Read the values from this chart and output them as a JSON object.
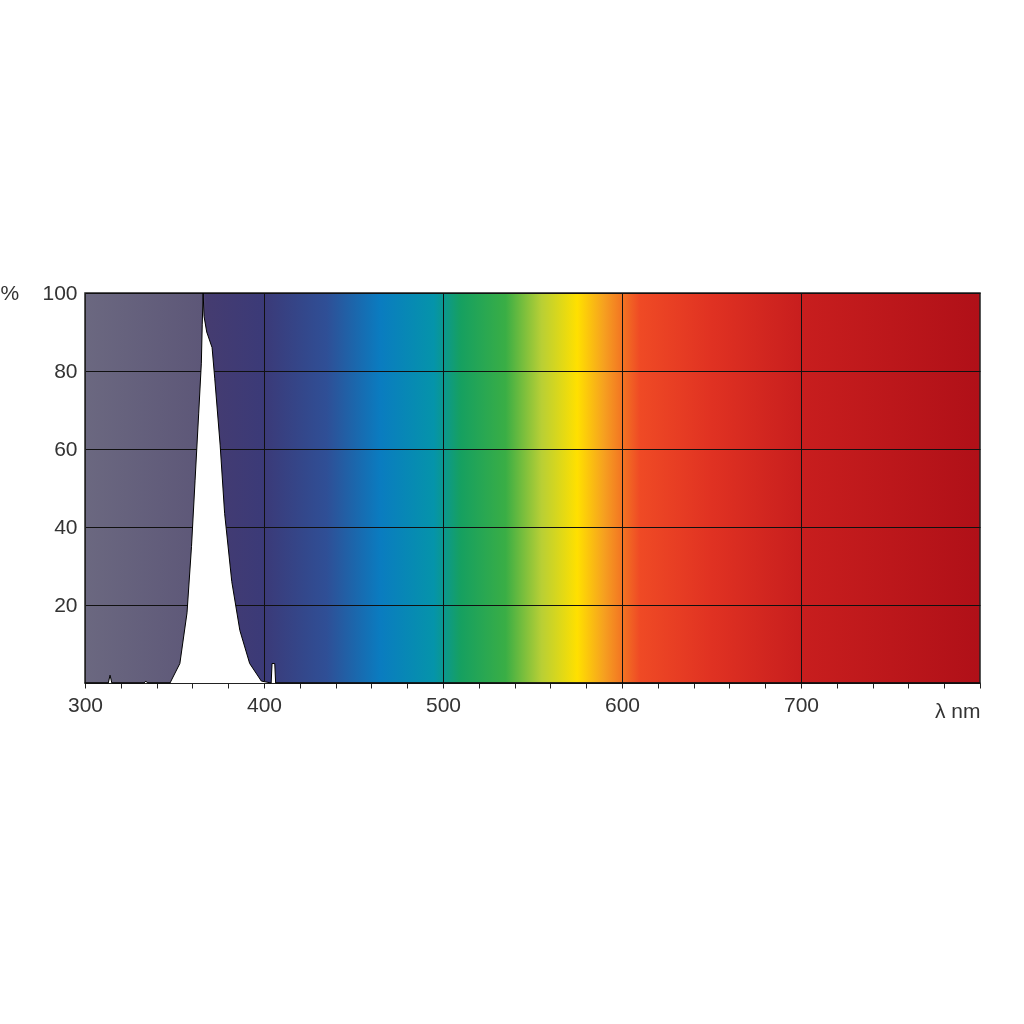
{
  "chart_data": {
    "type": "area",
    "xlabel": "λ nm",
    "ylabel": "%",
    "color": "#ffffff",
    "x": [
      300,
      313,
      314,
      315,
      333,
      334,
      335,
      347.5,
      353,
      357,
      359.5,
      361.5,
      363.5,
      365,
      365.5,
      366,
      366.5,
      368,
      371,
      372.5,
      375.5,
      378,
      382,
      386.5,
      392,
      398.5,
      404,
      404.5,
      406,
      406.5,
      800
    ],
    "values": [
      0,
      0,
      2,
      0,
      0,
      0.5,
      0,
      0,
      5,
      18,
      35,
      52,
      69,
      82,
      92,
      100,
      94,
      90,
      86,
      78,
      61,
      43.5,
      26,
      13.5,
      5,
      0.5,
      0,
      5,
      5,
      0,
      0
    ],
    "xlim": [
      300,
      800
    ],
    "ylim": [
      0,
      100
    ],
    "xticks": [
      300,
      {
        "value": 320,
        "label": null
      },
      {
        "value": 340,
        "label": null
      },
      {
        "value": 360,
        "label": null
      },
      {
        "value": 380,
        "label": null
      },
      400,
      {
        "value": 420,
        "label": null
      },
      {
        "value": 440,
        "label": null
      },
      {
        "value": 460,
        "label": null
      },
      {
        "value": 480,
        "label": null
      },
      500,
      {
        "value": 520,
        "label": null
      },
      {
        "value": 540,
        "label": null
      },
      {
        "value": 560,
        "label": null
      },
      {
        "value": 580,
        "label": null
      },
      600,
      {
        "value": 620,
        "label": null
      },
      {
        "value": 640,
        "label": null
      },
      {
        "value": 660,
        "label": null
      },
      {
        "value": 680,
        "label": null
      },
      700,
      {
        "value": 720,
        "label": null
      },
      {
        "value": 740,
        "label": null
      },
      {
        "value": 760,
        "label": null
      },
      {
        "value": 780,
        "label": null
      },
      {
        "value": 800,
        "label": null
      }
    ],
    "yticks": [
      20,
      40,
      60,
      80,
      100
    ],
    "grid": true
  }
}
